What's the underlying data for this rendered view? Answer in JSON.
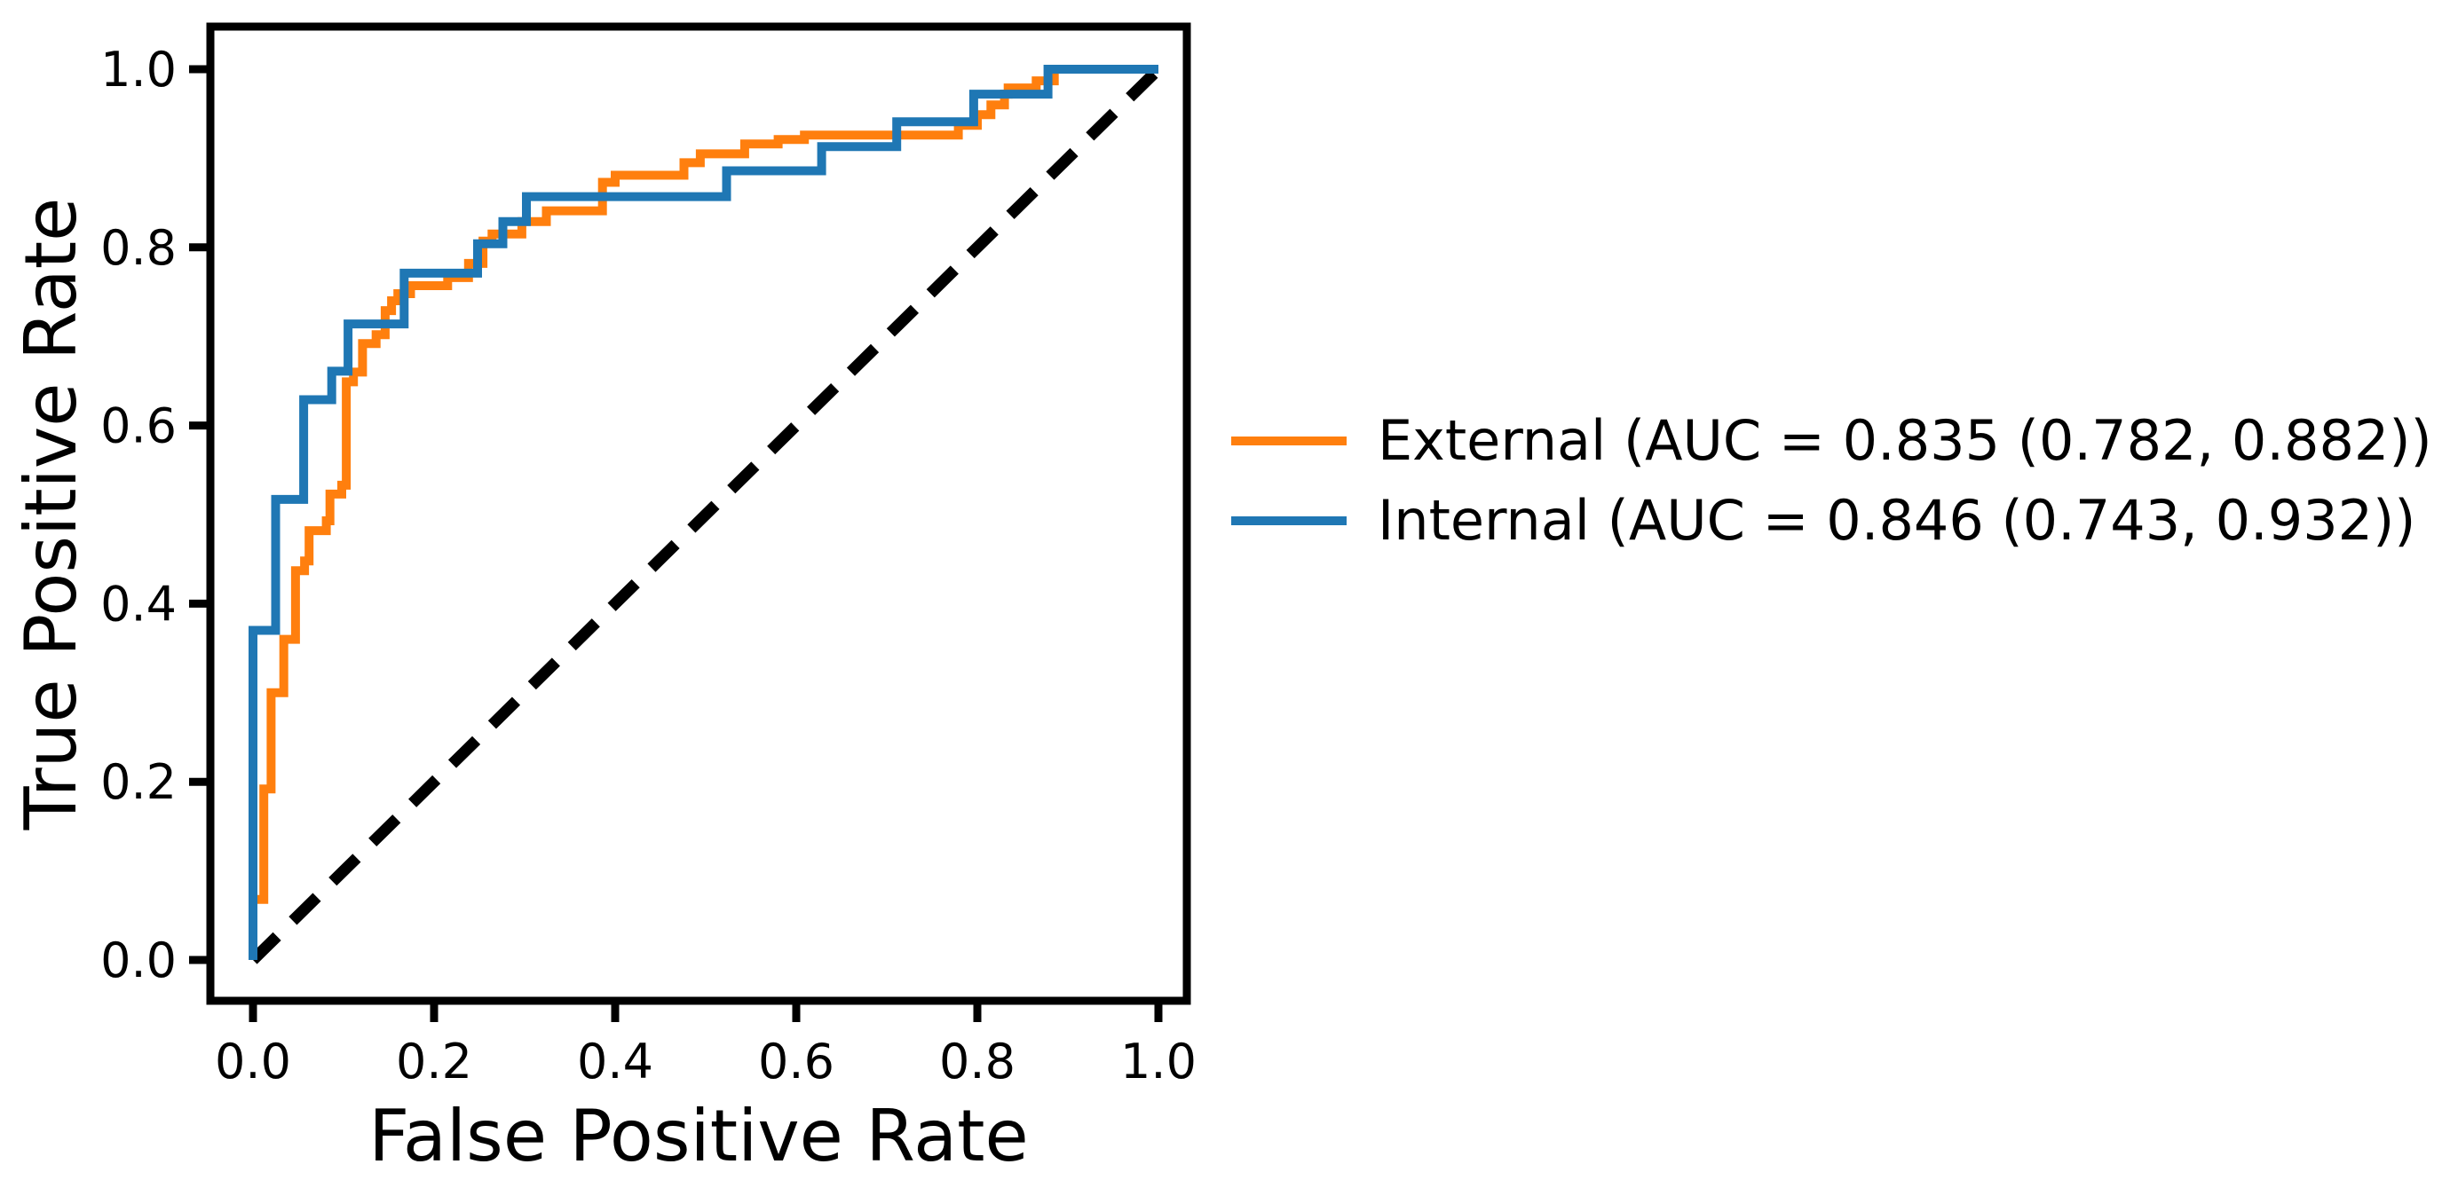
{
  "chart_data": {
    "type": "line",
    "subtype": "roc-step-curves",
    "title": "",
    "xlabel": "False Positive Rate",
    "ylabel": "True Positive Rate",
    "xlim": [
      -0.05,
      1.03
    ],
    "ylim": [
      -0.05,
      1.04
    ],
    "grid": false,
    "legend_position": "outside-right",
    "x_ticks": [
      {
        "value": 0.0,
        "label": "0.0"
      },
      {
        "value": 0.2,
        "label": "0.2"
      },
      {
        "value": 0.4,
        "label": "0.4"
      },
      {
        "value": 0.6,
        "label": "0.6"
      },
      {
        "value": 0.8,
        "label": "0.8"
      },
      {
        "value": 1.0,
        "label": "1.0"
      }
    ],
    "y_ticks": [
      {
        "value": 0.0,
        "label": "0.0"
      },
      {
        "value": 0.2,
        "label": "0.2"
      },
      {
        "value": 0.4,
        "label": "0.4"
      },
      {
        "value": 0.6,
        "label": "0.6"
      },
      {
        "value": 0.8,
        "label": "0.8"
      },
      {
        "value": 1.0,
        "label": "1.0"
      }
    ],
    "series": [
      {
        "name": "External",
        "label": "External (AUC = 0.835 (0.782, 0.882))",
        "auc": "0.835",
        "auc_ci": "(0.782, 0.882)",
        "color": "#ff7f0e",
        "points": [
          [
            0,
            0
          ],
          [
            0,
            0.068
          ],
          [
            0.012,
            0.068
          ],
          [
            0.012,
            0.192
          ],
          [
            0.02,
            0.192
          ],
          [
            0.02,
            0.3
          ],
          [
            0.034,
            0.3
          ],
          [
            0.034,
            0.36
          ],
          [
            0.047,
            0.36
          ],
          [
            0.047,
            0.437
          ],
          [
            0.057,
            0.437
          ],
          [
            0.057,
            0.448
          ],
          [
            0.062,
            0.448
          ],
          [
            0.062,
            0.482
          ],
          [
            0.081,
            0.482
          ],
          [
            0.081,
            0.493
          ],
          [
            0.085,
            0.493
          ],
          [
            0.085,
            0.523
          ],
          [
            0.098,
            0.523
          ],
          [
            0.098,
            0.533
          ],
          [
            0.103,
            0.533
          ],
          [
            0.103,
            0.649
          ],
          [
            0.111,
            0.649
          ],
          [
            0.111,
            0.66
          ],
          [
            0.121,
            0.66
          ],
          [
            0.121,
            0.692
          ],
          [
            0.136,
            0.692
          ],
          [
            0.136,
            0.702
          ],
          [
            0.146,
            0.702
          ],
          [
            0.146,
            0.729
          ],
          [
            0.153,
            0.729
          ],
          [
            0.153,
            0.74
          ],
          [
            0.16,
            0.74
          ],
          [
            0.16,
            0.748
          ],
          [
            0.174,
            0.748
          ],
          [
            0.174,
            0.757
          ],
          [
            0.215,
            0.757
          ],
          [
            0.215,
            0.766
          ],
          [
            0.238,
            0.766
          ],
          [
            0.238,
            0.782
          ],
          [
            0.254,
            0.782
          ],
          [
            0.254,
            0.807
          ],
          [
            0.264,
            0.807
          ],
          [
            0.264,
            0.815
          ],
          [
            0.297,
            0.815
          ],
          [
            0.297,
            0.829
          ],
          [
            0.324,
            0.829
          ],
          [
            0.324,
            0.841
          ],
          [
            0.386,
            0.841
          ],
          [
            0.386,
            0.873
          ],
          [
            0.4,
            0.873
          ],
          [
            0.4,
            0.881
          ],
          [
            0.476,
            0.881
          ],
          [
            0.476,
            0.895
          ],
          [
            0.494,
            0.895
          ],
          [
            0.494,
            0.905
          ],
          [
            0.543,
            0.905
          ],
          [
            0.543,
            0.916
          ],
          [
            0.58,
            0.916
          ],
          [
            0.58,
            0.921
          ],
          [
            0.609,
            0.921
          ],
          [
            0.609,
            0.926
          ],
          [
            0.779,
            0.926
          ],
          [
            0.779,
            0.937
          ],
          [
            0.8,
            0.937
          ],
          [
            0.8,
            0.949
          ],
          [
            0.815,
            0.949
          ],
          [
            0.815,
            0.96
          ],
          [
            0.83,
            0.96
          ],
          [
            0.83,
            0.972
          ],
          [
            0.834,
            0.972
          ],
          [
            0.834,
            0.979
          ],
          [
            0.865,
            0.979
          ],
          [
            0.865,
            0.987
          ],
          [
            0.885,
            0.987
          ],
          [
            0.885,
            1.0
          ],
          [
            1.0,
            1.0
          ]
        ]
      },
      {
        "name": "Internal",
        "label": "Internal (AUC = 0.846 (0.743, 0.932))",
        "auc": "0.846",
        "auc_ci": "(0.743, 0.932)",
        "color": "#1f77b4",
        "points": [
          [
            0,
            0
          ],
          [
            0,
            0.37
          ],
          [
            0.025,
            0.37
          ],
          [
            0.025,
            0.517
          ],
          [
            0.056,
            0.517
          ],
          [
            0.056,
            0.629
          ],
          [
            0.087,
            0.629
          ],
          [
            0.087,
            0.661
          ],
          [
            0.105,
            0.661
          ],
          [
            0.105,
            0.714
          ],
          [
            0.167,
            0.714
          ],
          [
            0.167,
            0.771
          ],
          [
            0.248,
            0.771
          ],
          [
            0.248,
            0.804
          ],
          [
            0.276,
            0.804
          ],
          [
            0.276,
            0.829
          ],
          [
            0.302,
            0.829
          ],
          [
            0.302,
            0.857
          ],
          [
            0.523,
            0.857
          ],
          [
            0.523,
            0.886
          ],
          [
            0.628,
            0.886
          ],
          [
            0.628,
            0.913
          ],
          [
            0.711,
            0.913
          ],
          [
            0.711,
            0.941
          ],
          [
            0.796,
            0.941
          ],
          [
            0.796,
            0.972
          ],
          [
            0.878,
            0.972
          ],
          [
            0.878,
            1.0
          ],
          [
            1.0,
            1.0
          ]
        ]
      }
    ],
    "reference_line": {
      "name": "chance-diagonal",
      "style": "dashed",
      "color": "#000000",
      "points": [
        [
          0,
          0
        ],
        [
          1,
          1
        ]
      ]
    }
  }
}
